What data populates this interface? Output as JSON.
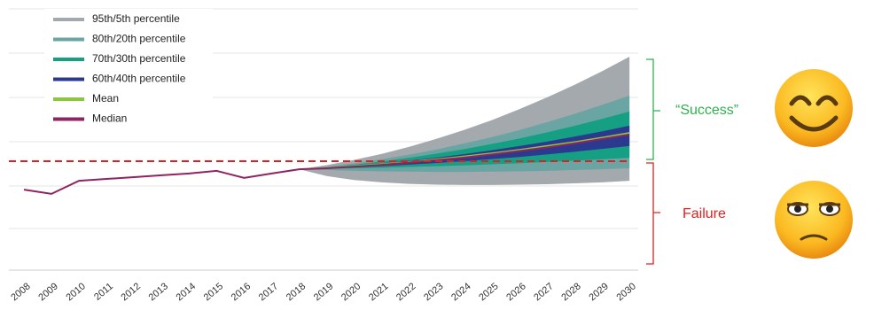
{
  "chart_data": {
    "type": "fan",
    "categories": [
      "2008",
      "2009",
      "2010",
      "2011",
      "2012",
      "2013",
      "2014",
      "2015",
      "2016",
      "2017",
      "2018",
      "2019",
      "2020",
      "2021",
      "2022",
      "2023",
      "2024",
      "2025",
      "2026",
      "2027",
      "2028",
      "2029",
      "2030"
    ],
    "ylim": [
      0,
      100
    ],
    "grid": true,
    "bands": [
      {
        "name": "95th/5th percentile",
        "color": "#a3a9ad",
        "upper": [
          null,
          null,
          null,
          null,
          null,
          null,
          null,
          null,
          null,
          null,
          38.6,
          40.2,
          42.2,
          44.5,
          47.2,
          50.3,
          53.7,
          57.4,
          61.6,
          66.1,
          70.9,
          76.1,
          81.7
        ],
        "lower": [
          null,
          null,
          null,
          null,
          null,
          null,
          null,
          null,
          null,
          null,
          38.6,
          36.0,
          34.5,
          33.6,
          33.0,
          32.7,
          32.6,
          32.6,
          32.7,
          32.9,
          33.2,
          33.6,
          34.2
        ]
      },
      {
        "name": "80th/20th percentile",
        "color": "#6aa5a4",
        "upper": [
          null,
          null,
          null,
          null,
          null,
          null,
          null,
          null,
          null,
          null,
          38.6,
          39.6,
          40.9,
          42.5,
          44.2,
          46.2,
          48.5,
          50.9,
          53.6,
          56.6,
          59.8,
          63.2,
          66.8
        ],
        "lower": [
          null,
          null,
          null,
          null,
          null,
          null,
          null,
          null,
          null,
          null,
          38.6,
          38.3,
          38.0,
          37.8,
          37.7,
          37.6,
          37.6,
          37.7,
          37.8,
          38.0,
          38.3,
          38.6,
          39.0
        ]
      },
      {
        "name": "70th/30th percentile",
        "color": "#15a083",
        "upper": [
          null,
          null,
          null,
          null,
          null,
          null,
          null,
          null,
          null,
          null,
          38.6,
          39.4,
          40.4,
          41.6,
          43.0,
          44.6,
          46.3,
          48.3,
          50.4,
          52.7,
          55.2,
          57.9,
          60.7
        ],
        "lower": [
          null,
          null,
          null,
          null,
          null,
          null,
          null,
          null,
          null,
          null,
          38.6,
          38.8,
          39.0,
          39.2,
          39.5,
          39.8,
          40.1,
          40.5,
          40.9,
          41.4,
          41.9,
          42.4,
          43.0
        ]
      },
      {
        "name": "60th/40th percentile",
        "color": "#2b3a8f",
        "upper": [
          null,
          null,
          null,
          null,
          null,
          null,
          null,
          null,
          null,
          null,
          38.6,
          39.2,
          40.0,
          40.9,
          41.9,
          43.1,
          44.4,
          45.9,
          47.5,
          49.2,
          51.1,
          53.1,
          55.3
        ],
        "lower": [
          null,
          null,
          null,
          null,
          null,
          null,
          null,
          null,
          null,
          null,
          38.6,
          38.9,
          39.3,
          39.8,
          40.4,
          41.0,
          41.7,
          42.5,
          43.3,
          44.3,
          45.3,
          46.4,
          47.5
        ]
      }
    ],
    "series": [
      {
        "name": "Mean",
        "color": "#8cc63f",
        "values": [
          null,
          null,
          null,
          null,
          null,
          null,
          null,
          null,
          null,
          null,
          38.6,
          39.1,
          39.8,
          40.5,
          41.4,
          42.4,
          43.5,
          44.7,
          46.0,
          47.5,
          49.0,
          50.7,
          52.5
        ]
      },
      {
        "name": "Median",
        "color": "#8e2462",
        "values": [
          30.8,
          29.2,
          34.2,
          34.9,
          35.6,
          36.3,
          37.0,
          38.0,
          35.3,
          37.0,
          38.6,
          39.0,
          39.6,
          40.3,
          41.2,
          42.1,
          43.1,
          44.3,
          45.6,
          47.0,
          48.5,
          50.2,
          51.9
        ]
      }
    ],
    "threshold": 41.7,
    "annotations": [
      "“Success”",
      "Failure"
    ]
  }
}
